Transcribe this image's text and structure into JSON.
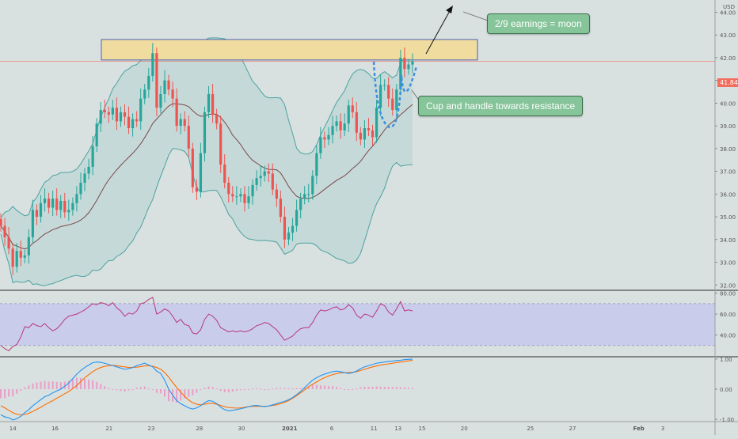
{
  "chart_data": {
    "type": "candlestick",
    "currency": "USD",
    "last_price_label": "41.84",
    "y_axis_price": {
      "ticks": [
        "44.00",
        "43.00",
        "42.00",
        "41.00",
        "40.00",
        "39.00",
        "38.00",
        "37.00",
        "36.00",
        "35.00",
        "34.00",
        "33.00",
        "32.00"
      ],
      "range": [
        31.8,
        44.4
      ]
    },
    "y_axis_rsi": {
      "ticks": [
        "80.00",
        "60.00",
        "40.00"
      ],
      "range": [
        20,
        82
      ],
      "band": [
        30,
        70
      ]
    },
    "y_axis_macd": {
      "ticks": [
        "1.00",
        "0.00",
        "-1.00"
      ],
      "range": [
        -1.05,
        1.05
      ]
    },
    "x_axis": {
      "ticks": [
        "14",
        "16",
        "21",
        "23",
        "28",
        "30",
        "2021",
        "6",
        "11",
        "13",
        "15",
        "20",
        "25",
        "27",
        "Feb",
        "3"
      ]
    },
    "resistance_zone": [
      41.9,
      42.8
    ],
    "annotations": [
      {
        "text": "2/9 earnings = moon"
      },
      {
        "text": "Cup and handle towards resistance"
      }
    ],
    "colors": {
      "up": "#26a69a",
      "down": "#ef5350",
      "band_line": "#4aa3a0",
      "band_fill": "#b4d3d1",
      "basis": "#7b4a4a",
      "zone_fill": "#f1dca0",
      "zone_border": "#4a5fb0",
      "rsi_line": "#b9367e",
      "rsi_band": "#c6c8ec",
      "macd_line": "#2196f3",
      "signal_line": "#ff6d00",
      "hist": "#e89fc7",
      "cup": "#3d8fe0",
      "price_line": "#f26d5b"
    },
    "close": [
      34.6,
      34.1,
      33.6,
      32.8,
      33.5,
      33.2,
      33.3,
      34.1,
      35.3,
      35.0,
      35.6,
      35.8,
      35.4,
      35.8,
      35.3,
      35.7,
      35.2,
      35.3,
      35.6,
      36.0,
      36.5,
      36.9,
      37.2,
      38.1,
      39.1,
      39.7,
      39.6,
      39.5,
      39.8,
      39.2,
      39.6,
      39.4,
      38.9,
      39.3,
      39.2,
      40.2,
      40.6,
      41.2,
      42.2,
      39.8,
      40.4,
      41.0,
      40.6,
      40.2,
      39.0,
      39.3,
      39.0,
      38.0,
      36.3,
      36.1,
      37.8,
      39.6,
      40.4,
      39.5,
      39.1,
      37.3,
      36.5,
      36.0,
      35.9,
      35.9,
      36.0,
      35.6,
      35.9,
      36.4,
      36.7,
      36.8,
      37.0,
      36.9,
      36.2,
      35.8,
      35.0,
      34.0,
      34.3,
      34.6,
      35.3,
      35.8,
      36.0,
      36.0,
      36.8,
      37.8,
      38.5,
      38.4,
      38.6,
      39.0,
      39.2,
      38.8,
      39.1,
      39.9,
      39.6,
      38.7,
      38.4,
      38.9,
      38.8,
      38.5,
      39.8,
      40.8,
      40.8,
      40.2,
      39.7,
      40.6,
      42.0,
      41.5,
      41.7,
      41.84
    ],
    "open": [
      34.9,
      34.6,
      34.1,
      33.6,
      32.8,
      33.5,
      33.2,
      33.3,
      34.1,
      35.3,
      35.0,
      35.6,
      35.8,
      35.4,
      35.8,
      35.3,
      35.7,
      35.2,
      35.3,
      35.6,
      36.0,
      36.5,
      36.9,
      37.2,
      38.1,
      39.1,
      39.7,
      39.6,
      39.5,
      39.8,
      39.2,
      39.6,
      39.4,
      38.9,
      39.3,
      39.2,
      40.2,
      40.6,
      41.2,
      42.2,
      39.8,
      40.4,
      41.0,
      40.6,
      40.2,
      39.0,
      39.3,
      39.0,
      38.0,
      36.3,
      36.1,
      37.8,
      39.6,
      40.4,
      39.5,
      39.1,
      37.3,
      36.5,
      36.0,
      35.9,
      35.9,
      36.0,
      35.6,
      35.9,
      36.4,
      36.7,
      36.8,
      37.0,
      36.9,
      36.2,
      35.8,
      35.0,
      34.0,
      34.3,
      34.6,
      35.3,
      35.8,
      36.0,
      36.0,
      36.8,
      37.8,
      38.5,
      38.4,
      38.6,
      39.0,
      39.2,
      38.8,
      39.1,
      39.9,
      39.6,
      38.7,
      38.4,
      38.9,
      38.8,
      38.5,
      39.8,
      40.8,
      40.8,
      40.2,
      39.7,
      40.6,
      42.0,
      41.5,
      41.7
    ],
    "rsi": [
      30,
      27,
      25,
      29,
      31,
      38,
      48,
      47,
      51,
      49,
      48,
      51,
      47,
      44,
      46,
      50,
      55,
      58,
      59,
      60,
      62,
      64,
      67,
      70,
      69,
      71,
      70,
      68,
      71,
      66,
      63,
      58,
      61,
      60,
      63,
      70,
      71,
      74,
      76,
      60,
      62,
      65,
      63,
      58,
      52,
      55,
      50,
      49,
      42,
      41,
      45,
      55,
      60,
      58,
      54,
      47,
      45,
      43,
      44,
      43,
      44,
      43,
      44,
      46,
      49,
      50,
      52,
      51,
      48,
      45,
      40,
      35,
      37,
      39,
      43,
      46,
      47,
      47,
      52,
      59,
      64,
      63,
      64,
      66,
      67,
      64,
      65,
      69,
      66,
      59,
      56,
      60,
      59,
      57,
      63,
      70,
      68,
      62,
      59,
      65,
      72,
      63,
      64,
      63
    ],
    "macd": [
      -0.85,
      -0.92,
      -0.95,
      -1.02,
      -0.98,
      -0.9,
      -0.78,
      -0.68,
      -0.55,
      -0.45,
      -0.35,
      -0.25,
      -0.2,
      -0.12,
      -0.06,
      0.0,
      0.1,
      0.2,
      0.35,
      0.5,
      0.62,
      0.72,
      0.8,
      0.88,
      0.9,
      0.89,
      0.86,
      0.82,
      0.78,
      0.74,
      0.7,
      0.66,
      0.68,
      0.72,
      0.78,
      0.82,
      0.86,
      0.8,
      0.74,
      0.6,
      0.52,
      0.3,
      0.0,
      -0.2,
      -0.38,
      -0.48,
      -0.55,
      -0.62,
      -0.66,
      -0.62,
      -0.55,
      -0.45,
      -0.38,
      -0.4,
      -0.48,
      -0.6,
      -0.68,
      -0.72,
      -0.7,
      -0.68,
      -0.65,
      -0.62,
      -0.58,
      -0.55,
      -0.54,
      -0.56,
      -0.58,
      -0.56,
      -0.52,
      -0.48,
      -0.44,
      -0.4,
      -0.35,
      -0.28,
      -0.18,
      -0.08,
      0.05,
      0.18,
      0.3,
      0.38,
      0.45,
      0.5,
      0.54,
      0.58,
      0.6,
      0.58,
      0.55,
      0.52,
      0.55,
      0.6,
      0.68,
      0.74,
      0.78,
      0.82,
      0.86,
      0.88,
      0.9,
      0.92,
      0.93,
      0.95,
      0.96,
      0.98,
      0.99,
      1.0
    ],
    "signal": [
      -0.55,
      -0.62,
      -0.7,
      -0.78,
      -0.83,
      -0.85,
      -0.84,
      -0.8,
      -0.74,
      -0.67,
      -0.6,
      -0.52,
      -0.45,
      -0.38,
      -0.3,
      -0.23,
      -0.15,
      -0.08,
      0.02,
      0.12,
      0.25,
      0.38,
      0.48,
      0.58,
      0.66,
      0.72,
      0.76,
      0.78,
      0.79,
      0.78,
      0.76,
      0.74,
      0.72,
      0.72,
      0.73,
      0.75,
      0.77,
      0.78,
      0.76,
      0.72,
      0.66,
      0.55,
      0.4,
      0.22,
      0.06,
      -0.1,
      -0.24,
      -0.36,
      -0.45,
      -0.5,
      -0.52,
      -0.5,
      -0.47,
      -0.47,
      -0.5,
      -0.54,
      -0.58,
      -0.61,
      -0.62,
      -0.63,
      -0.62,
      -0.6,
      -0.58,
      -0.57,
      -0.57,
      -0.57,
      -0.57,
      -0.56,
      -0.54,
      -0.52,
      -0.48,
      -0.44,
      -0.38,
      -0.3,
      -0.22,
      -0.12,
      -0.02,
      0.08,
      0.16,
      0.24,
      0.32,
      0.38,
      0.44,
      0.48,
      0.52,
      0.54,
      0.55,
      0.55,
      0.56,
      0.58,
      0.62,
      0.66,
      0.7,
      0.74,
      0.77,
      0.8,
      0.82,
      0.84,
      0.86,
      0.88,
      0.9,
      0.92,
      0.94,
      0.96
    ]
  }
}
